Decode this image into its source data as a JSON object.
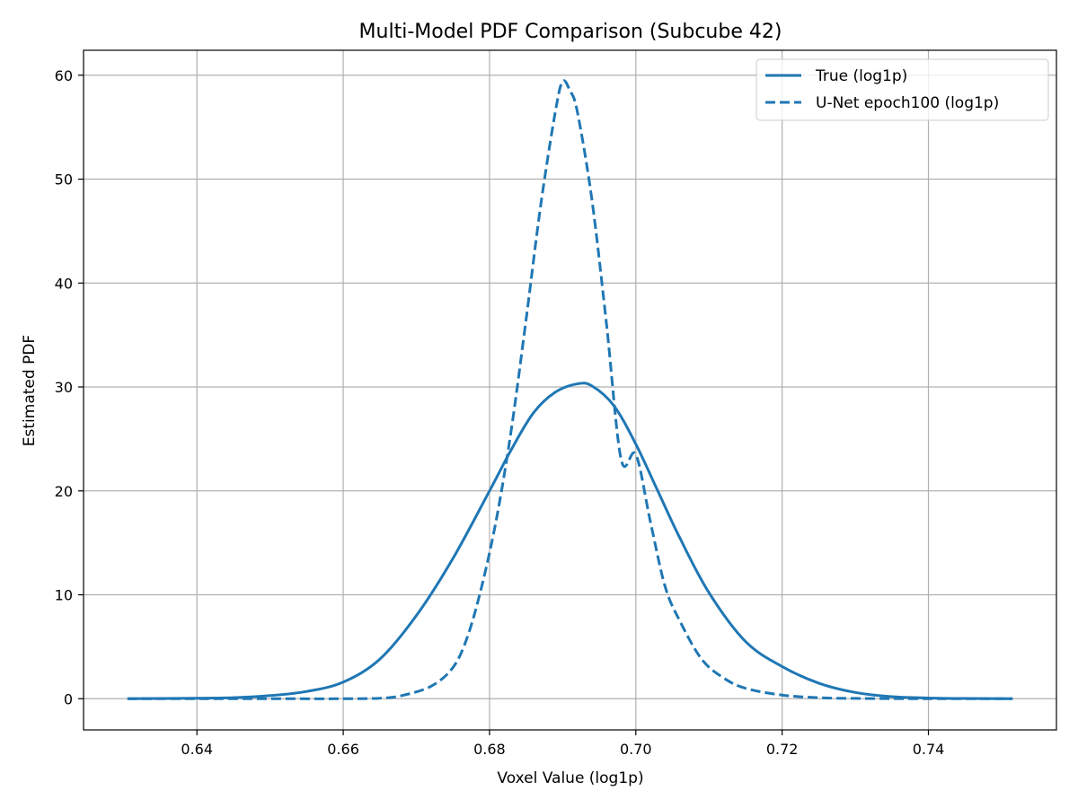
{
  "chart_data": {
    "type": "line",
    "title": "Multi-Model PDF Comparison (Subcube 42)",
    "xlabel": "Voxel Value (log1p)",
    "ylabel": "Estimated PDF",
    "xlim": [
      0.6245,
      0.7575
    ],
    "ylim": [
      -3.0,
      62.4
    ],
    "xticks": [
      0.64,
      0.66,
      0.68,
      0.7,
      0.72,
      0.74
    ],
    "xtick_labels": [
      "0.64",
      "0.66",
      "0.68",
      "0.70",
      "0.72",
      "0.74"
    ],
    "yticks": [
      0,
      10,
      20,
      30,
      40,
      50,
      60
    ],
    "ytick_labels": [
      "0",
      "10",
      "20",
      "30",
      "40",
      "50",
      "60"
    ],
    "grid": true,
    "legend_position": "top-right",
    "colors": {
      "line": "#1f77b4",
      "grid": "#b0b0b0"
    },
    "series": [
      {
        "name": "True (log1p)",
        "style": "solid",
        "x": [
          0.6305,
          0.64,
          0.645,
          0.65,
          0.655,
          0.66,
          0.665,
          0.67,
          0.675,
          0.68,
          0.683,
          0.686,
          0.689,
          0.692,
          0.694,
          0.697,
          0.7,
          0.703,
          0.706,
          0.71,
          0.715,
          0.72,
          0.725,
          0.73,
          0.735,
          0.74,
          0.745,
          0.7515
        ],
        "y": [
          0.0,
          0.05,
          0.1,
          0.3,
          0.7,
          1.6,
          3.8,
          8.0,
          13.5,
          20.0,
          24.0,
          27.5,
          29.5,
          30.3,
          30.1,
          28.2,
          24.5,
          20.0,
          15.5,
          10.2,
          5.5,
          3.1,
          1.5,
          0.6,
          0.2,
          0.07,
          0.02,
          0.0
        ]
      },
      {
        "name": "U-Net epoch100 (log1p)",
        "style": "dashed",
        "x": [
          0.6305,
          0.64,
          0.65,
          0.66,
          0.665,
          0.668,
          0.672,
          0.675,
          0.677,
          0.679,
          0.681,
          0.683,
          0.685,
          0.687,
          0.689,
          0.69,
          0.691,
          0.692,
          0.694,
          0.696,
          0.698,
          0.7,
          0.702,
          0.704,
          0.706,
          0.709,
          0.712,
          0.715,
          0.72,
          0.725,
          0.73,
          0.74,
          0.7515
        ],
        "y": [
          0.0,
          0.0,
          0.0,
          0.0,
          0.05,
          0.3,
          1.2,
          3.0,
          6.0,
          11.0,
          17.5,
          26.0,
          36.5,
          47.5,
          56.5,
          59.4,
          58.5,
          56.5,
          48.0,
          36.0,
          23.0,
          23.5,
          17.0,
          10.8,
          7.5,
          3.8,
          2.0,
          1.0,
          0.35,
          0.1,
          0.03,
          0.0,
          0.0
        ]
      }
    ]
  }
}
